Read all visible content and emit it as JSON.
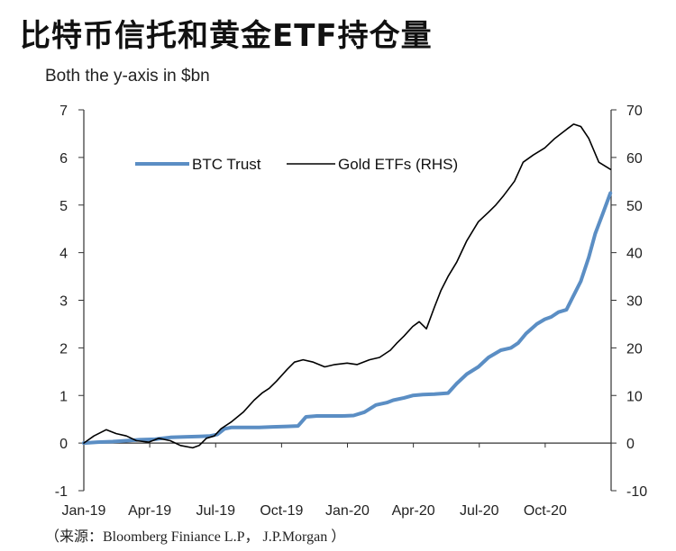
{
  "title": "比特币信托和黄金ETF持仓量",
  "subtitle": "Both the y-axis in $bn",
  "source": "（来源：Bloomberg Finiance L.P，  J.P.Morgan ）",
  "colors": {
    "btc": "#5b8ec4",
    "gold": "#000000",
    "axis": "#333333"
  },
  "chart_data": {
    "type": "line",
    "title": "比特币信托和黄金ETF持仓量",
    "subtitle": "Both the y-axis in $bn",
    "x_tick_labels": [
      "Jan-19",
      "Apr-19",
      "Jul-19",
      "Oct-19",
      "Jan-20",
      "Apr-20",
      "Jul-20",
      "Oct-20"
    ],
    "x_range_months": [
      0,
      24
    ],
    "y_left": {
      "ticks": [
        "7",
        "6",
        "5",
        "4",
        "3",
        "2",
        "1",
        "0",
        "-1"
      ],
      "ylim": [
        -1,
        7
      ]
    },
    "y_right": {
      "ticks": [
        "70",
        "60",
        "50",
        "40",
        "30",
        "20",
        "10",
        "0",
        "-10"
      ],
      "ylim": [
        -10,
        70
      ]
    },
    "legend_position": "top-center",
    "grid": false,
    "series": [
      {
        "name": "BTC Trust",
        "axis": "left",
        "color": "#5b8ec4",
        "x": [
          "2019-01-01",
          "2019-01-20",
          "2019-02-10",
          "2019-03-01",
          "2019-03-20",
          "2019-04-10",
          "2019-04-20",
          "2019-05-01",
          "2019-05-20",
          "2019-06-10",
          "2019-06-25",
          "2019-07-05",
          "2019-07-15",
          "2019-07-25",
          "2019-08-10",
          "2019-09-01",
          "2019-09-20",
          "2019-10-10",
          "2019-10-25",
          "2019-11-05",
          "2019-11-20",
          "2019-12-10",
          "2019-12-25",
          "2020-01-10",
          "2020-01-25",
          "2020-02-10",
          "2020-02-25",
          "2020-03-05",
          "2020-03-20",
          "2020-04-01",
          "2020-04-15",
          "2020-05-01",
          "2020-05-20",
          "2020-06-01",
          "2020-06-15",
          "2020-07-01",
          "2020-07-15",
          "2020-08-01",
          "2020-08-15",
          "2020-08-25",
          "2020-09-05",
          "2020-09-20",
          "2020-10-01",
          "2020-10-10",
          "2020-10-20",
          "2020-10-31",
          "2020-11-10",
          "2020-11-20",
          "2020-12-01",
          "2020-12-10",
          "2020-12-20",
          "2020-12-31"
        ],
        "y": [
          0.0,
          0.02,
          0.03,
          0.05,
          0.07,
          0.08,
          0.1,
          0.12,
          0.13,
          0.14,
          0.15,
          0.18,
          0.3,
          0.33,
          0.33,
          0.33,
          0.34,
          0.35,
          0.36,
          0.55,
          0.57,
          0.57,
          0.57,
          0.58,
          0.65,
          0.8,
          0.85,
          0.9,
          0.95,
          1.0,
          1.02,
          1.03,
          1.05,
          1.25,
          1.45,
          1.6,
          1.8,
          1.95,
          2.0,
          2.1,
          2.3,
          2.5,
          2.6,
          2.65,
          2.75,
          2.8,
          3.1,
          3.4,
          3.9,
          4.4,
          4.8,
          5.25
        ]
      },
      {
        "name": "Gold ETFs (RHS)",
        "axis": "right",
        "color": "#000000",
        "x": [
          "2019-01-01",
          "2019-01-15",
          "2019-02-01",
          "2019-02-15",
          "2019-03-01",
          "2019-03-15",
          "2019-04-01",
          "2019-04-15",
          "2019-05-01",
          "2019-05-15",
          "2019-06-01",
          "2019-06-10",
          "2019-06-20",
          "2019-07-01",
          "2019-07-10",
          "2019-07-25",
          "2019-08-10",
          "2019-08-25",
          "2019-09-05",
          "2019-09-15",
          "2019-09-25",
          "2019-10-10",
          "2019-10-20",
          "2019-11-01",
          "2019-11-15",
          "2019-12-01",
          "2019-12-15",
          "2020-01-01",
          "2020-01-15",
          "2020-02-01",
          "2020-02-15",
          "2020-03-01",
          "2020-03-10",
          "2020-03-20",
          "2020-04-01",
          "2020-04-10",
          "2020-04-20",
          "2020-05-01",
          "2020-05-10",
          "2020-05-20",
          "2020-06-01",
          "2020-06-15",
          "2020-07-01",
          "2020-07-15",
          "2020-07-25",
          "2020-08-05",
          "2020-08-20",
          "2020-09-01",
          "2020-09-15",
          "2020-10-01",
          "2020-10-15",
          "2020-11-01",
          "2020-11-10",
          "2020-11-20",
          "2020-12-01",
          "2020-12-15",
          "2020-12-31"
        ],
        "y": [
          0.0,
          1.5,
          2.8,
          2.0,
          1.5,
          0.5,
          0.2,
          1.0,
          0.5,
          -0.5,
          -1.0,
          -0.5,
          1.0,
          1.5,
          3.0,
          4.5,
          6.5,
          9.0,
          10.5,
          11.5,
          13.0,
          15.5,
          17.0,
          17.5,
          17.0,
          16.0,
          16.5,
          16.8,
          16.5,
          17.5,
          18.0,
          19.5,
          21.0,
          22.5,
          24.5,
          25.5,
          24.0,
          28.5,
          32.0,
          35.0,
          38.0,
          42.5,
          46.5,
          48.5,
          50.0,
          52.0,
          55.0,
          59.0,
          60.5,
          62.0,
          64.0,
          66.0,
          67.0,
          66.5,
          64.0,
          59.0,
          57.5
        ]
      }
    ]
  }
}
